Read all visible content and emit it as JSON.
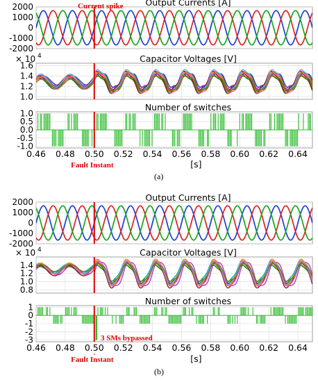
{
  "figure": {
    "caption_a": "(a)",
    "caption_b": "(b)"
  },
  "chart_data": [
    {
      "type": "line",
      "panel": "a",
      "fault_time": 0.5,
      "annotations": {
        "spike": "Current spike",
        "fault": "Fault Instant"
      },
      "x_ticks": [
        0.46,
        0.48,
        0.5,
        0.52,
        0.54,
        0.56,
        0.58,
        0.6,
        0.62,
        0.64
      ],
      "x_tick_labels": [
        "0.46",
        "0.48",
        "0.50",
        "0.52",
        "0.54",
        "0.56",
        "0.58",
        "0.60",
        "0.62",
        "0.64"
      ],
      "xlabel": "[s]",
      "xlim": [
        0.46,
        0.65
      ],
      "subplots": [
        {
          "title": "Output Currents [A]",
          "ylim": [
            -2000,
            2000
          ],
          "y_ticks": [
            2000,
            1000,
            0,
            -1000,
            -2000
          ],
          "y_tick_labels": [
            "2000",
            "1000",
            "0",
            "-1000",
            "-2000"
          ],
          "series": [
            {
              "color": "#1f3fd8",
              "amplitude": 1650,
              "frequency_hz": 50,
              "phase_deg": 0
            },
            {
              "color": "#e02020",
              "amplitude": 1650,
              "frequency_hz": 50,
              "phase_deg": -120
            },
            {
              "color": "#18a818",
              "amplitude": 1650,
              "frequency_hz": 50,
              "phase_deg": 120
            }
          ]
        },
        {
          "title": "Capacitor Voltages [V]",
          "multiplier": "× 10",
          "multiplier_exp": "4",
          "ylim": [
            0.95,
            1.65
          ],
          "y_ticks": [
            1.6,
            1.4,
            1.2,
            1.0
          ],
          "y_tick_labels": [
            "1.6",
            "1.4",
            "1.2",
            "1.0"
          ],
          "pre_fault": {
            "mean": 1.28,
            "ripple": 0.12
          },
          "post_fault": {
            "mean": 1.28,
            "ripple": 0.2
          },
          "series_count": 12
        },
        {
          "title": "Number of switches",
          "ylim": [
            -1.1,
            1.1
          ],
          "y_ticks": [
            1.0,
            0.5,
            0.0,
            -0.5,
            -1.0
          ],
          "y_tick_labels": [
            "1.0",
            "0.5",
            "0.0",
            "-0.5",
            "-1.0"
          ],
          "levels": [
            -1,
            0,
            1
          ],
          "color": "#2cbc2c"
        }
      ]
    },
    {
      "type": "line",
      "panel": "b",
      "fault_time": 0.5,
      "annotations": {
        "bypass": "3 SMs bypassed",
        "fault": "Fault Instant"
      },
      "x_ticks": [
        0.46,
        0.48,
        0.5,
        0.52,
        0.54,
        0.56,
        0.58,
        0.6,
        0.62,
        0.64
      ],
      "x_tick_labels": [
        "0.46",
        "0.48",
        "0.50",
        "0.52",
        "0.54",
        "0.56",
        "0.58",
        "0.60",
        "0.62",
        "0.64"
      ],
      "xlabel": "[s]",
      "xlim": [
        0.46,
        0.65
      ],
      "subplots": [
        {
          "title": "Output Currents [A]",
          "ylim": [
            -2000,
            2000
          ],
          "y_ticks": [
            2000,
            1000,
            0,
            -1000,
            -2000
          ],
          "y_tick_labels": [
            "2000",
            "1000",
            "0",
            "-1000",
            "-2000"
          ],
          "series": [
            {
              "color": "#1f3fd8",
              "amplitude": 1650,
              "frequency_hz": 50,
              "phase_deg": 0
            },
            {
              "color": "#e02020",
              "amplitude": 1650,
              "frequency_hz": 50,
              "phase_deg": -120
            },
            {
              "color": "#18a818",
              "amplitude": 1650,
              "frequency_hz": 50,
              "phase_deg": 120
            }
          ]
        },
        {
          "title": "Capacitor Voltages [V]",
          "multiplier": "× 10",
          "multiplier_exp": "4",
          "ylim": [
            0.72,
            1.6
          ],
          "y_ticks": [
            1.4,
            1.2,
            1.0,
            0.8
          ],
          "y_tick_labels": [
            "1.4",
            "1.2",
            "1.0",
            "0.8"
          ],
          "pre_fault": {
            "mean": 1.3,
            "ripple": 0.12
          },
          "post_fault": {
            "mean": 1.2,
            "ripple": 0.3
          },
          "series_count": 12
        },
        {
          "title": "Number of switches",
          "ylim": [
            -3.2,
            1.2
          ],
          "y_ticks": [
            1,
            0,
            -1,
            -2,
            -3
          ],
          "y_tick_labels": [
            "1",
            "0",
            "-1",
            "-2",
            "-3"
          ],
          "levels": [
            -1,
            0,
            1
          ],
          "dip_value": -3,
          "color": "#2cbc2c"
        }
      ]
    }
  ]
}
